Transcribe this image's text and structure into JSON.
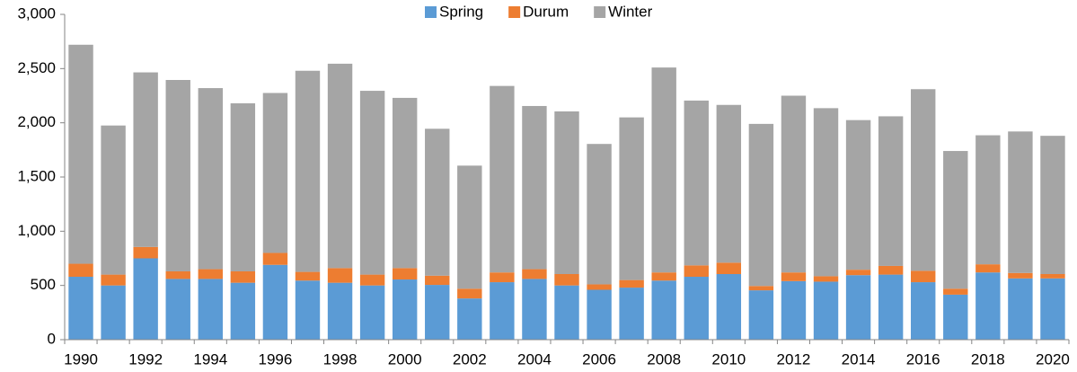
{
  "chart_data": {
    "type": "stacked-bar",
    "categories": [
      "1990",
      null,
      "1992",
      null,
      "1994",
      null,
      "1996",
      null,
      "1998",
      null,
      "2000",
      null,
      "2002",
      null,
      "2004",
      null,
      "2006",
      null,
      "2008",
      null,
      "2010",
      null,
      "2012",
      null,
      "2014",
      null,
      "2016",
      null,
      "2018",
      null,
      "2020"
    ],
    "series": [
      {
        "name": "Spring",
        "color": "#5b9bd5",
        "values": [
          580,
          500,
          750,
          560,
          560,
          525,
          690,
          545,
          525,
          500,
          555,
          505,
          380,
          530,
          560,
          500,
          460,
          480,
          545,
          580,
          605,
          455,
          540,
          535,
          595,
          600,
          530,
          415,
          620,
          565,
          565
        ]
      },
      {
        "name": "Durum",
        "color": "#ed7d31",
        "values": [
          120,
          100,
          105,
          70,
          90,
          105,
          110,
          80,
          135,
          100,
          105,
          85,
          90,
          90,
          90,
          105,
          50,
          70,
          75,
          105,
          105,
          40,
          80,
          50,
          50,
          80,
          105,
          55,
          75,
          50,
          40
        ]
      },
      {
        "name": "Winter",
        "color": "#a5a5a5",
        "values": [
          2020,
          1375,
          1610,
          1765,
          1670,
          1550,
          1475,
          1855,
          1885,
          1695,
          1570,
          1355,
          1135,
          1720,
          1505,
          1500,
          1295,
          1500,
          1890,
          1520,
          1455,
          1495,
          1630,
          1550,
          1380,
          1380,
          1675,
          1270,
          1190,
          1305,
          1275
        ]
      }
    ],
    "ylim": [
      0,
      3000
    ],
    "yticks": [
      0,
      500,
      {
        "value": 1000,
        "label": "1,000"
      },
      {
        "value": 1500,
        "label": "1,500"
      },
      {
        "value": 2000,
        "label": "2,000"
      },
      {
        "value": 2500,
        "label": "2,500"
      },
      {
        "value": 3000,
        "label": "3,000"
      }
    ],
    "grid": false,
    "legend": "top"
  }
}
